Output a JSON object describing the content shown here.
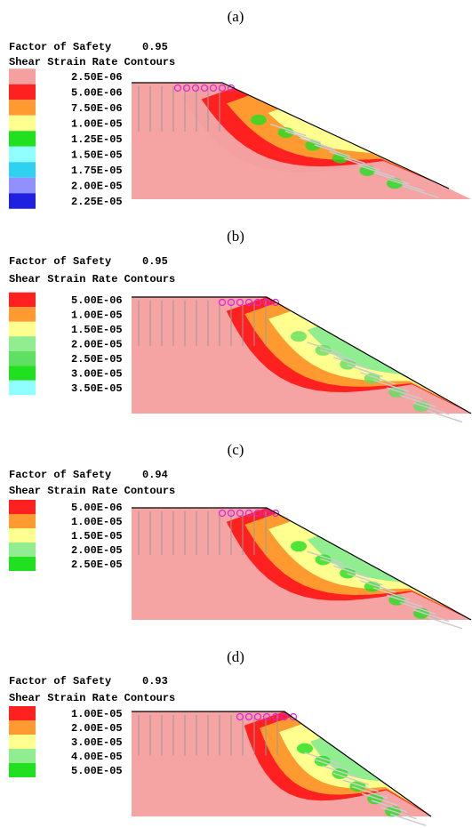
{
  "panels": [
    {
      "label": "(a)",
      "fos_title": "Factor of Safety",
      "fos": 0.95,
      "legend_title": "Shear Strain Rate Contours",
      "legend": [
        {
          "label": "2.50E-06",
          "color": "#f4a0a0"
        },
        {
          "label": "5.00E-06",
          "color": "#ff2020"
        },
        {
          "label": "7.50E-06",
          "color": "#ff9a30"
        },
        {
          "label": "1.00E-05",
          "color": "#ffff90"
        },
        {
          "label": "1.25E-05",
          "color": "#20e020"
        },
        {
          "label": "1.50E-05",
          "color": "#90ffff"
        },
        {
          "label": "1.75E-05",
          "color": "#30d0f0"
        },
        {
          "label": "2.00E-05",
          "color": "#9090ff"
        },
        {
          "label": "2.25E-05",
          "color": "#2020e0"
        }
      ]
    },
    {
      "label": "(b)",
      "fos_title": "Factor of Safety",
      "fos": 0.95,
      "legend_title": "Shear Strain Rate Contours",
      "legend": [
        {
          "label": "5.00E-06",
          "color": "#ff2020"
        },
        {
          "label": "1.00E-05",
          "color": "#ff9a30"
        },
        {
          "label": "1.50E-05",
          "color": "#ffff90"
        },
        {
          "label": "2.00E-05",
          "color": "#90ee90"
        },
        {
          "label": "2.50E-05",
          "color": "#60e060"
        },
        {
          "label": "3.00E-05",
          "color": "#20e020"
        },
        {
          "label": "3.50E-05",
          "color": "#90ffff"
        }
      ]
    },
    {
      "label": "(c)",
      "fos_title": "Factor of Safety",
      "fos": 0.94,
      "legend_title": "Shear Strain Rate Contours",
      "legend": [
        {
          "label": "5.00E-06",
          "color": "#ff2020"
        },
        {
          "label": "1.00E-05",
          "color": "#ff9a30"
        },
        {
          "label": "1.50E-05",
          "color": "#ffff90"
        },
        {
          "label": "2.00E-05",
          "color": "#90ee90"
        },
        {
          "label": "2.50E-05",
          "color": "#20e020"
        }
      ]
    },
    {
      "label": "(d)",
      "fos_title": "Factor of Safety",
      "fos": 0.93,
      "legend_title": "Shear Strain Rate Contours",
      "legend": [
        {
          "label": "1.00E-05",
          "color": "#ff2020"
        },
        {
          "label": "2.00E-05",
          "color": "#ff9a30"
        },
        {
          "label": "3.00E-05",
          "color": "#ffff90"
        },
        {
          "label": "4.00E-05",
          "color": "#90ee90"
        },
        {
          "label": "5.00E-05",
          "color": "#20e020"
        }
      ]
    }
  ]
}
